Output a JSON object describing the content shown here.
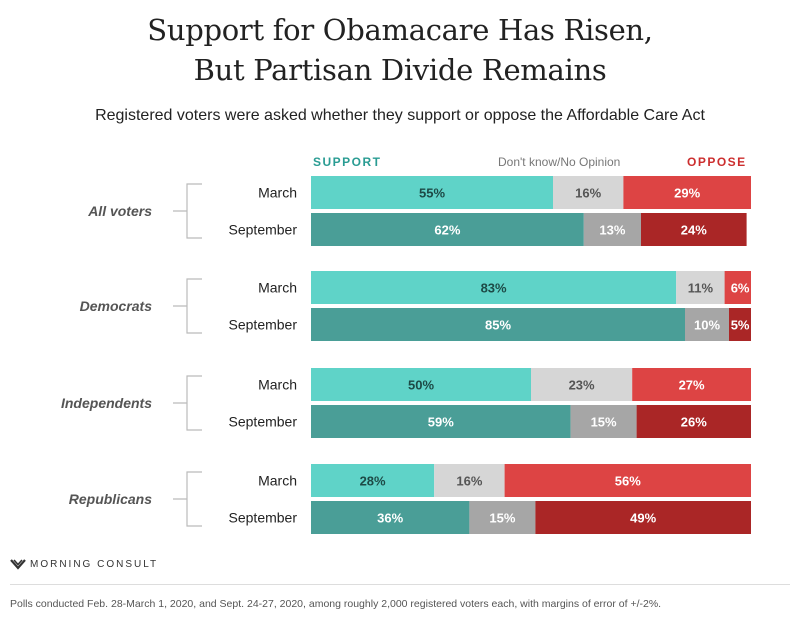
{
  "title_line1": "Support for Obamacare Has Risen,",
  "title_line2": "But Partisan Divide Remains",
  "subtitle": "Registered voters were asked whether they support or oppose the Affordable Care Act",
  "legend": {
    "support": "SUPPORT",
    "dont_know": "Don't know/No Opinion",
    "oppose": "OPPOSE"
  },
  "brand": "MORNING CONSULT",
  "footnote": "Polls conducted Feb. 28-March 1, 2020, and Sept. 24-27, 2020, among roughly 2,000 registered voters each, with margins of error of +/-2%.",
  "colors": {
    "support_march": "#5fd3c8",
    "support_september": "#4a9e97",
    "dont_know_march": "#d6d6d6",
    "dont_know_september": "#a6a6a6",
    "oppose_march": "#dd4444",
    "oppose_september": "#aa2626"
  },
  "chart_data": {
    "type": "bar",
    "orientation": "horizontal",
    "stacked": true,
    "unit": "%",
    "xlim": [
      0,
      100
    ],
    "groups": [
      {
        "name": "All voters",
        "rows": [
          {
            "label": "March",
            "support": 55,
            "dont_know": 16,
            "oppose": 29
          },
          {
            "label": "September",
            "support": 62,
            "dont_know": 13,
            "oppose": 24
          }
        ]
      },
      {
        "name": "Democrats",
        "rows": [
          {
            "label": "March",
            "support": 83,
            "dont_know": 11,
            "oppose": 6
          },
          {
            "label": "September",
            "support": 85,
            "dont_know": 10,
            "oppose": 5
          }
        ]
      },
      {
        "name": "Independents",
        "rows": [
          {
            "label": "March",
            "support": 50,
            "dont_know": 23,
            "oppose": 27
          },
          {
            "label": "September",
            "support": 59,
            "dont_know": 15,
            "oppose": 26
          }
        ]
      },
      {
        "name": "Republicans",
        "rows": [
          {
            "label": "March",
            "support": 28,
            "dont_know": 16,
            "oppose": 56
          },
          {
            "label": "September",
            "support": 36,
            "dont_know": 15,
            "oppose": 49
          }
        ]
      }
    ]
  }
}
